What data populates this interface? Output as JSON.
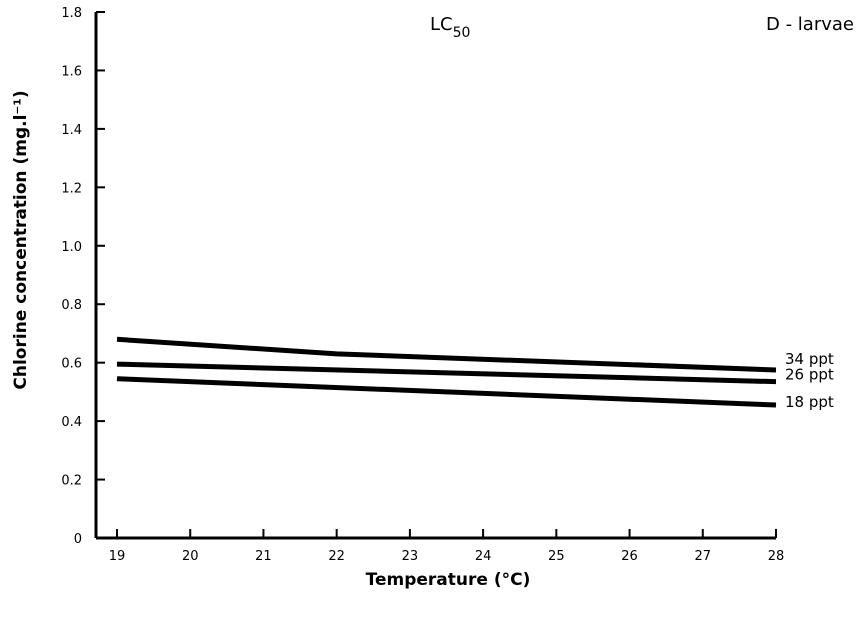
{
  "chart_data": {
    "type": "line",
    "title": "LC50",
    "title_main": "LC",
    "title_sub": "50",
    "subtitle": "D - larvae",
    "xlabel": "Temperature (°C)",
    "ylabel": "Chlorine concentration (mg.l⁻¹)",
    "xlim": [
      19,
      28
    ],
    "ylim": [
      0,
      1.8
    ],
    "x_ticks": [
      "19",
      "20",
      "21",
      "22",
      "23",
      "24",
      "25",
      "26",
      "27",
      "28"
    ],
    "y_ticks": [
      "0",
      "0.2",
      "0.4",
      "0.6",
      "0.8",
      "1.0",
      "1.2",
      "1.4",
      "1.6",
      "1.8"
    ],
    "grid": false,
    "series": [
      {
        "name": "34 ppt",
        "x": [
          19,
          22,
          28
        ],
        "y": [
          0.68,
          0.63,
          0.575
        ]
      },
      {
        "name": "26 ppt",
        "x": [
          19,
          28
        ],
        "y": [
          0.595,
          0.535
        ]
      },
      {
        "name": "18 ppt",
        "x": [
          19,
          28
        ],
        "y": [
          0.545,
          0.455
        ]
      }
    ]
  }
}
